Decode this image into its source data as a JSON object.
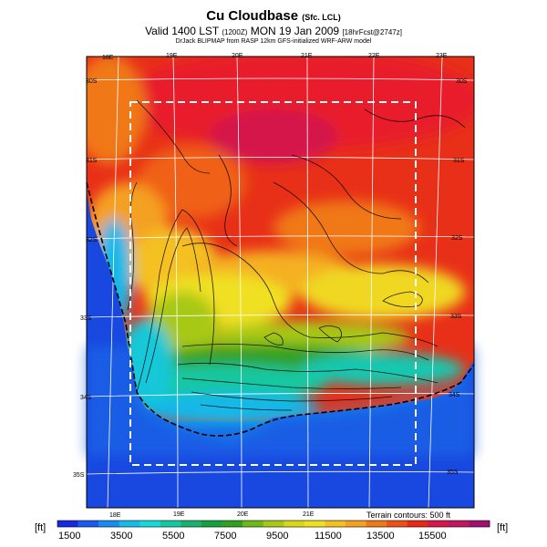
{
  "header": {
    "title": "Cu Cloudbase",
    "title_suffix": "(Sfc. LCL)",
    "valid_line": "Valid 1400 LST",
    "valid_code": "(1200Z)",
    "valid_date": "MON 19 Jan 2009",
    "forecast_hint": "[18hrFcst@2747z]",
    "credit": "DrJack BLIPMAP from RASP 12km GFS-initialized WRF-ARW model"
  },
  "map": {
    "lon_top": [
      "18E",
      "19E",
      "20E",
      "21E",
      "22E",
      "23E"
    ],
    "lon_bottom": [
      "18E",
      "19E",
      "20E",
      "21E"
    ],
    "lat_left": [
      "30S",
      "31S",
      "32S",
      "33S",
      "34S",
      "35S"
    ],
    "lat_right": [
      "30S",
      "31S",
      "32S",
      "33S",
      "34S",
      "35S"
    ],
    "terrain_note": "Terrain contours: 500 ft"
  },
  "colorbar": {
    "unit_left": "[ft]",
    "unit_right": "[ft]",
    "tick_labels": [
      "1500",
      "3500",
      "5500",
      "7500",
      "9500",
      "11500",
      "13500",
      "15500"
    ],
    "colors": [
      "#1828e0",
      "#1a5af0",
      "#1a8cf0",
      "#16bce8",
      "#18d8d8",
      "#16c8a0",
      "#1ab070",
      "#16a040",
      "#30a020",
      "#70b818",
      "#a8c818",
      "#d8d818",
      "#f0e020",
      "#f4c020",
      "#f4a020",
      "#f07818",
      "#ec5018",
      "#e82818",
      "#d8184a",
      "#c01860",
      "#a01070"
    ]
  }
}
